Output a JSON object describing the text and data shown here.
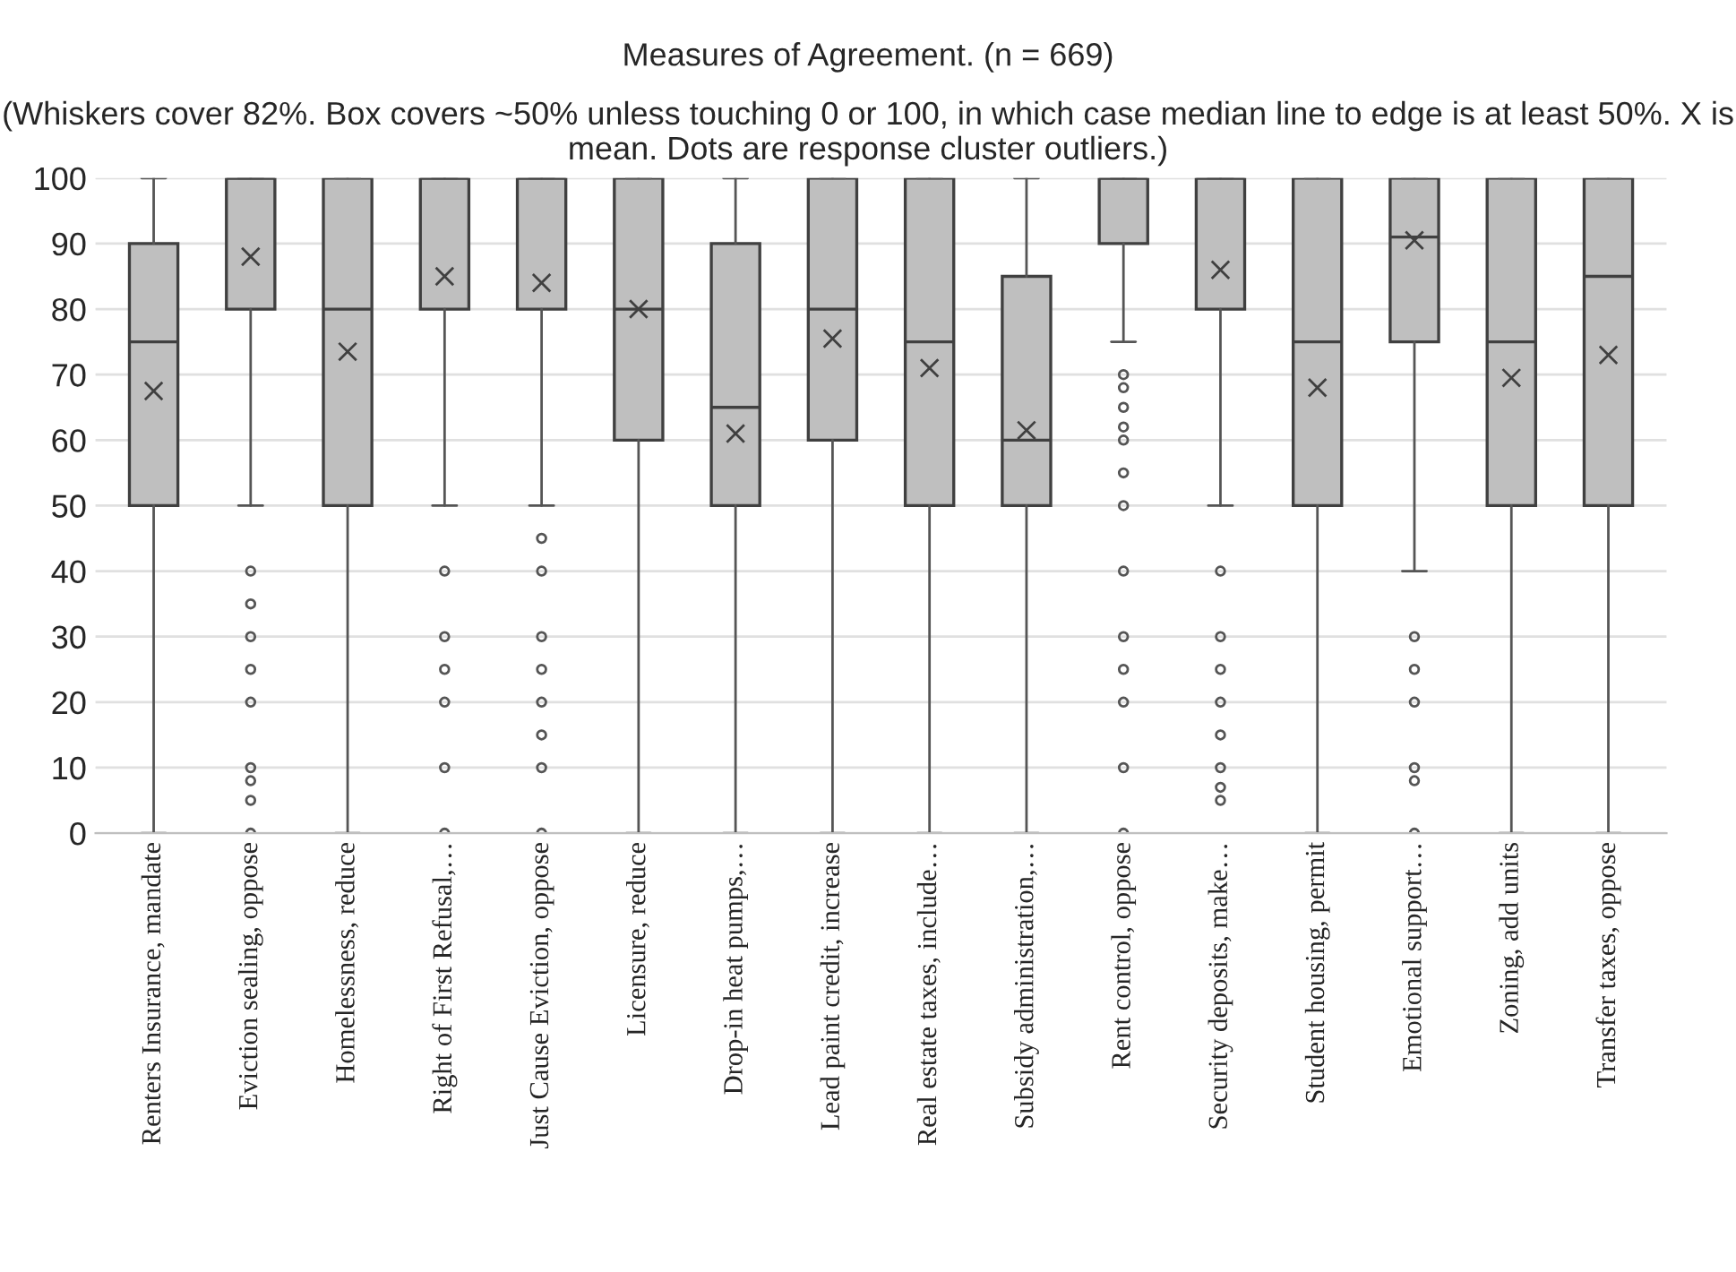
{
  "chart_data": {
    "type": "box",
    "title": "Measures of Agreement. (n = 669)",
    "subtitle": "(Whiskers cover 82%. Box covers ~50% unless touching 0 or 100, in which case median line to edge is at least 50%. X is mean. Dots are response cluster outliers.)",
    "categories": [
      "Renters Insurance, mandate",
      "Eviction sealing, oppose",
      "Homelessness, reduce",
      "Right of First Refusal,…",
      "Just Cause Eviction, oppose",
      "Licensure, reduce",
      "Drop-in heat pumps,…",
      "Lead paint credit, increase",
      "Real estate taxes, include…",
      "Subsidy administration,…",
      "Rent control, oppose",
      "Security deposits, make…",
      "Student housing, permit",
      "Emotional support…",
      "Zoning, add units",
      "Transfer taxes, oppose"
    ],
    "boxes": [
      {
        "low": 0,
        "q1": 50,
        "median": 75,
        "q3": 90,
        "high": 100,
        "mean": 67.5
      },
      {
        "low": 50,
        "q1": 80,
        "median": 100,
        "q3": 100,
        "high": 100,
        "mean": 88,
        "outliers": [
          40,
          35,
          30,
          25,
          20,
          10,
          8,
          5,
          0
        ]
      },
      {
        "low": 0,
        "q1": 50,
        "median": 80,
        "q3": 100,
        "high": 100,
        "mean": 73.5
      },
      {
        "low": 50,
        "q1": 80,
        "median": 100,
        "q3": 100,
        "high": 100,
        "mean": 85,
        "outliers": [
          40,
          30,
          25,
          20,
          10,
          0
        ]
      },
      {
        "low": 50,
        "q1": 80,
        "median": 100,
        "q3": 100,
        "high": 100,
        "mean": 84,
        "outliers": [
          45,
          40,
          30,
          25,
          20,
          15,
          10,
          0
        ]
      },
      {
        "low": 0,
        "q1": 60,
        "median": 80,
        "q3": 100,
        "high": 100,
        "mean": 80
      },
      {
        "low": 0,
        "q1": 50,
        "median": 65,
        "q3": 90,
        "high": 100,
        "mean": 61
      },
      {
        "low": 0,
        "q1": 60,
        "median": 80,
        "q3": 100,
        "high": 100,
        "mean": 75.5
      },
      {
        "low": 0,
        "q1": 50,
        "median": 75,
        "q3": 100,
        "high": 100,
        "mean": 71
      },
      {
        "low": 0,
        "q1": 50,
        "median": 60,
        "q3": 85,
        "high": 100,
        "mean": 61.5
      },
      {
        "low": 75,
        "q1": 90,
        "median": 100,
        "q3": 100,
        "high": 100,
        "outliers": [
          70,
          68,
          65,
          62,
          60,
          55,
          50,
          40,
          30,
          25,
          20,
          10,
          0
        ]
      },
      {
        "low": 50,
        "q1": 80,
        "median": 100,
        "q3": 100,
        "high": 100,
        "mean": 86,
        "outliers": [
          40,
          30,
          25,
          20,
          15,
          10,
          7,
          5
        ]
      },
      {
        "low": 0,
        "q1": 50,
        "median": 75,
        "q3": 100,
        "high": 100,
        "mean": 68
      },
      {
        "low": 40,
        "q1": 75,
        "median": 91,
        "q3": 100,
        "high": 100,
        "mean": 90.5,
        "outliers": [
          30,
          25,
          20,
          10,
          8,
          0
        ]
      },
      {
        "low": 0,
        "q1": 50,
        "median": 75,
        "q3": 100,
        "high": 100,
        "mean": 69.5
      },
      {
        "low": 0,
        "q1": 50,
        "median": 85,
        "q3": 100,
        "high": 100,
        "mean": 73
      }
    ],
    "color": "#bfbfbf",
    "ylim": [
      0,
      100
    ],
    "yticks": [
      0,
      10,
      20,
      30,
      40,
      50,
      60,
      70,
      80,
      90,
      100
    ],
    "grid": "y"
  }
}
